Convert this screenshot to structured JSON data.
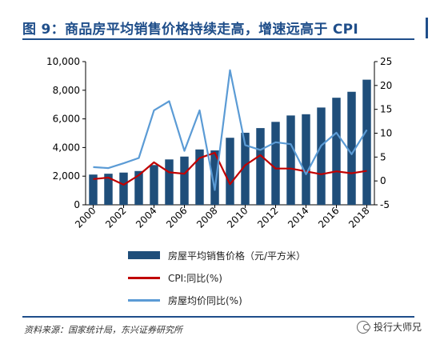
{
  "title": "图 9：商品房平均销售价格持续走高，增速远高于 CPI",
  "source": "资料来源：国家统计局，东兴证券研究所",
  "watermark": "投行大师兄",
  "colors": {
    "bar": "#1f4e7a",
    "cpi": "#c00000",
    "price_yoy": "#5b9bd5",
    "title": "#1f4e8a"
  },
  "legend": [
    {
      "label": "房屋平均销售价格（元/平方米）",
      "type": "bar",
      "color": "#1f4e7a"
    },
    {
      "label": "CPI:同比(%)",
      "type": "line",
      "color": "#c00000"
    },
    {
      "label": "房屋均价同比(%)",
      "type": "line",
      "color": "#5b9bd5"
    }
  ],
  "chart_data": {
    "type": "bar",
    "x": [
      2000,
      2001,
      2002,
      2003,
      2004,
      2005,
      2006,
      2007,
      2008,
      2009,
      2010,
      2011,
      2012,
      2013,
      2014,
      2015,
      2016,
      2017,
      2018
    ],
    "x_tick_labels": [
      "2000",
      "2002",
      "2004",
      "2006",
      "2008",
      "2010",
      "2012",
      "2014",
      "2016",
      "2018"
    ],
    "y_left_lim": [
      0,
      10000
    ],
    "y_left_ticks": [
      "0",
      "2,000",
      "4,000",
      "6,000",
      "8,000",
      "10,000"
    ],
    "y_right_lim": [
      -5,
      25
    ],
    "y_right_ticks": [
      "-5",
      "0",
      "5",
      "10",
      "15",
      "20",
      "25"
    ],
    "legend_position": "bottom",
    "grid": false,
    "series": [
      {
        "name": "房屋平均销售价格（元/平方米）",
        "type": "bar",
        "axis": "left",
        "values": [
          2112,
          2170,
          2250,
          2359,
          2778,
          3168,
          3367,
          3864,
          3800,
          4681,
          5032,
          5357,
          5791,
          6237,
          6324,
          6793,
          7476,
          7892,
          8737
        ]
      },
      {
        "name": "CPI:同比(%)",
        "type": "line",
        "axis": "right",
        "values": [
          0.4,
          0.7,
          -0.8,
          1.2,
          3.9,
          1.8,
          1.5,
          4.8,
          5.9,
          -0.7,
          3.3,
          5.4,
          2.6,
          2.6,
          2.0,
          1.4,
          2.0,
          1.6,
          2.1
        ]
      },
      {
        "name": "房屋均价同比(%)",
        "type": "line",
        "axis": "right",
        "values": [
          2.9,
          2.7,
          3.7,
          4.8,
          14.8,
          16.7,
          6.3,
          14.8,
          -1.9,
          23.2,
          7.5,
          6.5,
          8.1,
          7.7,
          1.4,
          7.4,
          10.1,
          5.6,
          10.7
        ]
      }
    ]
  }
}
